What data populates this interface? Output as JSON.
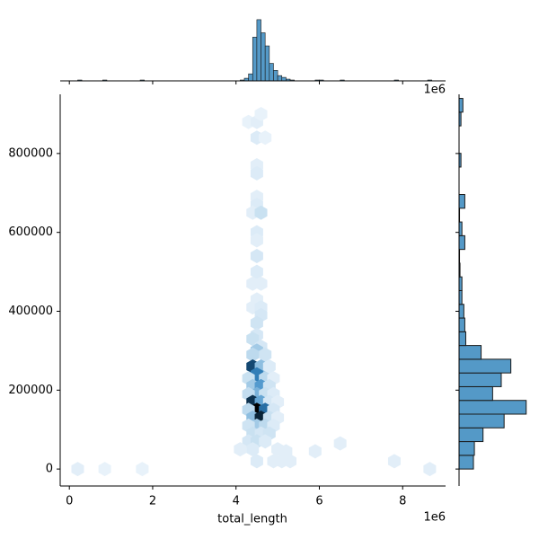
{
  "chart_data": {
    "type": "hexbin",
    "xlabel": "total_length",
    "x_offset_label": "1e6",
    "top_offset_label": "1e6",
    "xlim": [
      -220000,
      9030000
    ],
    "ylim": [
      -43000,
      950000
    ],
    "xticks": [
      {
        "value": 0,
        "label": "0"
      },
      {
        "value": 2000000,
        "label": "2"
      },
      {
        "value": 4000000,
        "label": "4"
      },
      {
        "value": 6000000,
        "label": "6"
      },
      {
        "value": 8000000,
        "label": "8"
      }
    ],
    "yticks": [
      0,
      200000,
      400000,
      600000,
      800000
    ],
    "colormap": [
      "#eef5fc",
      "#a9cfe8",
      "#3a8bc7",
      "#15507f",
      "#000000"
    ],
    "hexbins": {
      "x": [
        4300000,
        4500000,
        4600000,
        4500000,
        4700000,
        4500000,
        4500000,
        4500000,
        4500000,
        4400000,
        4600000,
        4500000,
        4500000,
        4500000,
        4500000,
        4400000,
        4600000,
        4500000,
        4400000,
        4600000,
        4600000,
        4500000,
        4500000,
        4400000,
        4600000,
        4500000,
        4400000,
        4700000,
        4400000,
        4600000,
        4800000,
        4500000,
        4300000,
        4700000,
        4900000,
        4400000,
        4600000,
        4800000,
        4500000,
        4300000,
        4700000,
        4900000,
        4400000,
        4600000,
        4800000,
        5000000,
        4500000,
        4300000,
        4700000,
        4900000,
        4400000,
        4600000,
        4800000,
        5000000,
        4500000,
        4300000,
        4700000,
        4900000,
        4400000,
        4600000,
        4800000,
        4300000,
        4500000,
        4700000,
        4100000,
        4400000,
        5000000,
        5200000,
        5900000,
        6500000,
        4500000,
        4900000,
        5100000,
        5300000,
        7800000,
        200000,
        850000,
        1750000,
        8650000
      ],
      "y": [
        880000,
        880000,
        900000,
        840000,
        840000,
        770000,
        750000,
        690000,
        670000,
        650000,
        650000,
        600000,
        580000,
        540000,
        500000,
        470000,
        470000,
        430000,
        410000,
        410000,
        390000,
        370000,
        340000,
        330000,
        310000,
        300000,
        290000,
        290000,
        260000,
        260000,
        260000,
        240000,
        230000,
        230000,
        230000,
        210000,
        210000,
        210000,
        190000,
        190000,
        190000,
        190000,
        170000,
        170000,
        170000,
        170000,
        150000,
        150000,
        150000,
        150000,
        130000,
        130000,
        130000,
        130000,
        110000,
        110000,
        110000,
        110000,
        90000,
        90000,
        90000,
        70000,
        70000,
        70000,
        50000,
        50000,
        50000,
        45000,
        45000,
        65000,
        20000,
        20000,
        20000,
        20000,
        20000,
        0,
        0,
        0,
        0
      ],
      "counts": [
        1,
        2,
        1,
        3,
        1,
        2,
        3,
        2,
        3,
        2,
        6,
        3,
        2,
        4,
        3,
        2,
        2,
        2,
        2,
        3,
        4,
        5,
        4,
        6,
        4,
        12,
        8,
        5,
        35,
        14,
        3,
        25,
        6,
        8,
        2,
        12,
        20,
        5,
        16,
        7,
        6,
        3,
        38,
        18,
        4,
        2,
        45,
        8,
        28,
        4,
        14,
        40,
        6,
        2,
        12,
        5,
        8,
        3,
        6,
        4,
        5,
        4,
        6,
        3,
        2,
        3,
        2,
        2,
        2,
        2,
        3,
        2,
        2,
        2,
        2,
        2,
        1,
        1,
        2
      ]
    },
    "marginal_x": {
      "color": "#5499c7",
      "edgecolor": "#1a1a1a",
      "ylim": [
        0,
        74
      ],
      "bins": [
        0,
        100000,
        200000,
        300000,
        400000,
        500000,
        600000,
        700000,
        800000,
        900000,
        1000000,
        1100000,
        1200000,
        1300000,
        1400000,
        1500000,
        1600000,
        1700000,
        1800000,
        1900000,
        2000000,
        2100000,
        2200000,
        2300000,
        2400000,
        2500000,
        2600000,
        2700000,
        2800000,
        2900000,
        3000000,
        3100000,
        3200000,
        3300000,
        3400000,
        3500000,
        3600000,
        3700000,
        3800000,
        3900000,
        4000000,
        4100000,
        4200000,
        4300000,
        4400000,
        4500000,
        4600000,
        4700000,
        4800000,
        4900000,
        5000000,
        5100000,
        5200000,
        5300000,
        5400000,
        5500000,
        5600000,
        5700000,
        5800000,
        5900000,
        6000000,
        6100000,
        6200000,
        6300000,
        6400000,
        6500000,
        6600000,
        6700000,
        6800000,
        6900000,
        7000000,
        7100000,
        7200000,
        7300000,
        7400000,
        7500000,
        7600000,
        7700000,
        7800000,
        7900000,
        8000000,
        8100000,
        8200000,
        8300000,
        8400000,
        8500000,
        8600000,
        8700000,
        8800000
      ],
      "counts": [
        0,
        0,
        1,
        0,
        0,
        0,
        0,
        0,
        1,
        0,
        0,
        0,
        0,
        0,
        0,
        0,
        0,
        1,
        0,
        0,
        0,
        0,
        0,
        0,
        0,
        0,
        0,
        0,
        0,
        0,
        0,
        0,
        0,
        0,
        0,
        0,
        0,
        0,
        0,
        0,
        0,
        1,
        3,
        8,
        50,
        70,
        55,
        40,
        20,
        12,
        6,
        4,
        2,
        1,
        0,
        0,
        0,
        0,
        0,
        1,
        1,
        0,
        0,
        0,
        0,
        1,
        0,
        0,
        0,
        0,
        0,
        0,
        0,
        0,
        0,
        0,
        0,
        0,
        1,
        0,
        0,
        0,
        0,
        0,
        0,
        0,
        1,
        0
      ]
    },
    "marginal_y": {
      "color": "#5499c7",
      "edgecolor": "#1a1a1a",
      "xlim": [
        0,
        148
      ],
      "bins": [
        0,
        34800,
        69600,
        104400,
        139200,
        174000,
        208800,
        243600,
        278400,
        313200,
        348000,
        382800,
        417600,
        452400,
        487200,
        522000,
        556800,
        591600,
        626400,
        661200,
        696000,
        730800,
        765600,
        800400,
        835200,
        870000,
        904800,
        939600
      ],
      "counts": [
        30,
        32,
        50,
        94,
        140,
        70,
        88,
        108,
        46,
        14,
        12,
        10,
        6,
        6,
        2,
        1,
        12,
        6,
        1,
        12,
        0,
        0,
        4,
        0,
        0,
        4,
        8
      ]
    }
  }
}
